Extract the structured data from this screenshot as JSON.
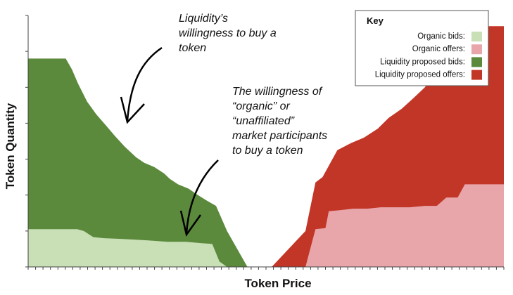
{
  "chart_data": {
    "type": "area",
    "title": "",
    "xlabel": "Token Price",
    "ylabel": "Token Quantity",
    "xlim": [
      0,
      100
    ],
    "ylim": [
      0,
      7
    ],
    "grid": false,
    "legend_position": "top-right",
    "x_ticks": 64,
    "y_ticks": 7,
    "series": [
      {
        "name": "Liquidity proposed bids:",
        "color": "#5b8a3c",
        "kind": "bid",
        "points": [
          [
            0,
            5.8
          ],
          [
            2.6,
            5.8
          ],
          [
            5.3,
            5.8
          ],
          [
            7.9,
            5.8
          ],
          [
            9.2,
            5.5
          ],
          [
            10.5,
            5.1
          ],
          [
            12.4,
            4.6
          ],
          [
            14.3,
            4.25
          ],
          [
            16.6,
            3.9
          ],
          [
            18.2,
            3.65
          ],
          [
            20.3,
            3.35
          ],
          [
            22.7,
            3.05
          ],
          [
            24.4,
            2.9
          ],
          [
            26.5,
            2.78
          ],
          [
            28.6,
            2.6
          ],
          [
            29.8,
            2.45
          ],
          [
            31.5,
            2.3
          ],
          [
            33.7,
            2.18
          ],
          [
            35.7,
            2.0
          ],
          [
            37.5,
            1.85
          ],
          [
            39.5,
            1.7
          ],
          [
            41.8,
            1.0
          ],
          [
            46.1,
            0
          ]
        ]
      },
      {
        "name": "Organic bids:",
        "color": "#c9dfb6",
        "kind": "bid",
        "points": [
          [
            0,
            1.05
          ],
          [
            3.0,
            1.05
          ],
          [
            6.0,
            1.05
          ],
          [
            8.0,
            1.05
          ],
          [
            10.3,
            1.05
          ],
          [
            11.7,
            1.0
          ],
          [
            13.7,
            0.83
          ],
          [
            16.0,
            0.8
          ],
          [
            19.5,
            0.78
          ],
          [
            22.3,
            0.76
          ],
          [
            25.2,
            0.74
          ],
          [
            29.3,
            0.7
          ],
          [
            33.2,
            0.7
          ],
          [
            36.5,
            0.66
          ],
          [
            38.7,
            0.64
          ],
          [
            40.2,
            0.15
          ],
          [
            41.8,
            0
          ]
        ]
      },
      {
        "name": "Liquidity proposed offers:",
        "color": "#c23627",
        "kind": "offer",
        "points": [
          [
            51.2,
            0
          ],
          [
            58.3,
            1.0
          ],
          [
            60.4,
            2.35
          ],
          [
            61.9,
            2.5
          ],
          [
            65.0,
            3.25
          ],
          [
            67.9,
            3.45
          ],
          [
            70.6,
            3.6
          ],
          [
            73.5,
            3.85
          ],
          [
            75.8,
            4.15
          ],
          [
            78.5,
            4.4
          ],
          [
            81.0,
            4.7
          ],
          [
            83.4,
            5.0
          ],
          [
            85.1,
            5.3
          ],
          [
            87.1,
            5.6
          ],
          [
            89.3,
            5.85
          ],
          [
            91.0,
            6.25
          ],
          [
            92.3,
            6.7
          ],
          [
            94.2,
            6.7
          ],
          [
            96.0,
            6.7
          ],
          [
            98.0,
            6.7
          ],
          [
            100,
            6.7
          ]
        ]
      },
      {
        "name": "Organic offers:",
        "color": "#e8a6ab",
        "kind": "offer",
        "points": [
          [
            58.3,
            0
          ],
          [
            60.4,
            1.05
          ],
          [
            62.5,
            1.08
          ],
          [
            63.2,
            1.55
          ],
          [
            65.5,
            1.58
          ],
          [
            68.3,
            1.62
          ],
          [
            71.3,
            1.62
          ],
          [
            74.1,
            1.66
          ],
          [
            77.0,
            1.66
          ],
          [
            80.2,
            1.66
          ],
          [
            83.4,
            1.7
          ],
          [
            85.9,
            1.7
          ],
          [
            87.9,
            1.93
          ],
          [
            90.3,
            1.93
          ],
          [
            91.8,
            2.3
          ],
          [
            93.6,
            2.3
          ],
          [
            96.0,
            2.3
          ],
          [
            98.0,
            2.3
          ],
          [
            100,
            2.3
          ]
        ]
      }
    ],
    "annotations": [
      {
        "lines": [
          "Liquidity’s",
          "willingness to buy a",
          "token"
        ]
      },
      {
        "lines": [
          "The willingness of",
          "“organic” or",
          "“unaffiliated”",
          "market participants",
          "to buy a token"
        ]
      }
    ],
    "legend": {
      "title": "Key",
      "order": [
        1,
        3,
        0,
        2
      ]
    }
  }
}
